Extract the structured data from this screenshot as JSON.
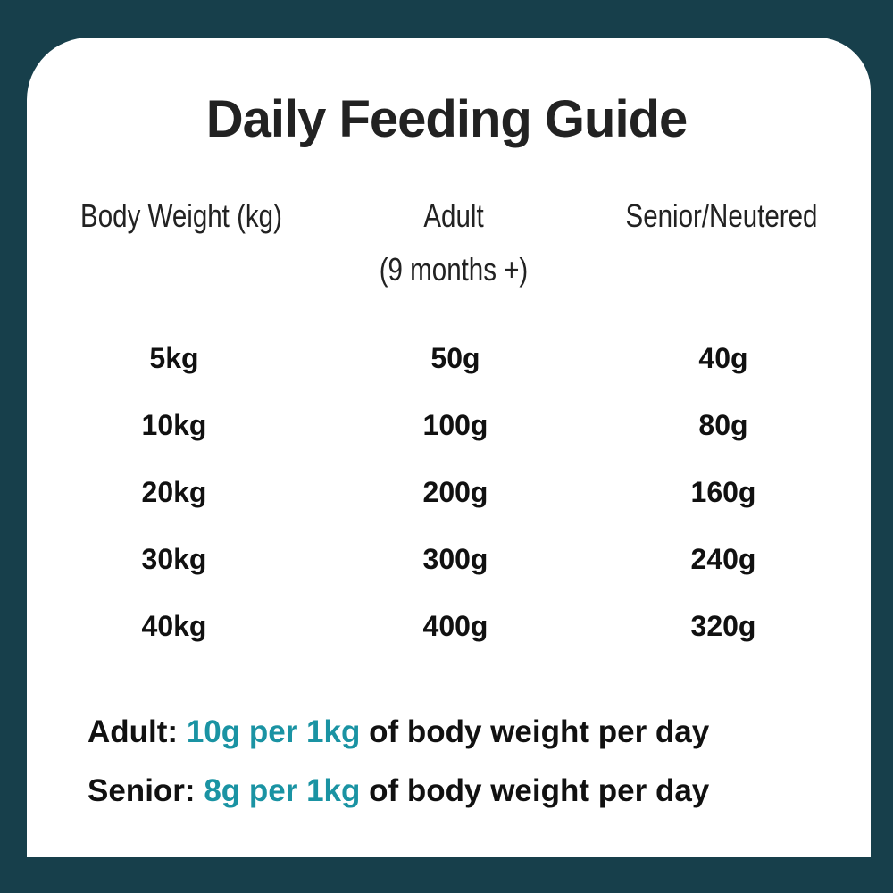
{
  "title": "Daily Feeding Guide",
  "headers": {
    "weight": "Body Weight (kg)",
    "adult": "Adult",
    "adult_sub": "(9 months +)",
    "senior": "Senior/Neutered"
  },
  "rows": [
    {
      "weight": "5kg",
      "adult": "50g",
      "senior": "40g"
    },
    {
      "weight": "10kg",
      "adult": "100g",
      "senior": "80g"
    },
    {
      "weight": "20kg",
      "adult": "200g",
      "senior": "160g"
    },
    {
      "weight": "30kg",
      "adult": "300g",
      "senior": "240g"
    },
    {
      "weight": "40kg",
      "adult": "400g",
      "senior": "320g"
    }
  ],
  "rules": [
    {
      "label": "Adult:",
      "amount": "10g per 1kg",
      "rest": "of body weight per day"
    },
    {
      "label": "Senior:",
      "amount": "8g per 1kg",
      "rest": "of body weight per day"
    }
  ],
  "colors": {
    "background": "#173f4b",
    "accent": "#1a93a3",
    "card": "#ffffff"
  }
}
